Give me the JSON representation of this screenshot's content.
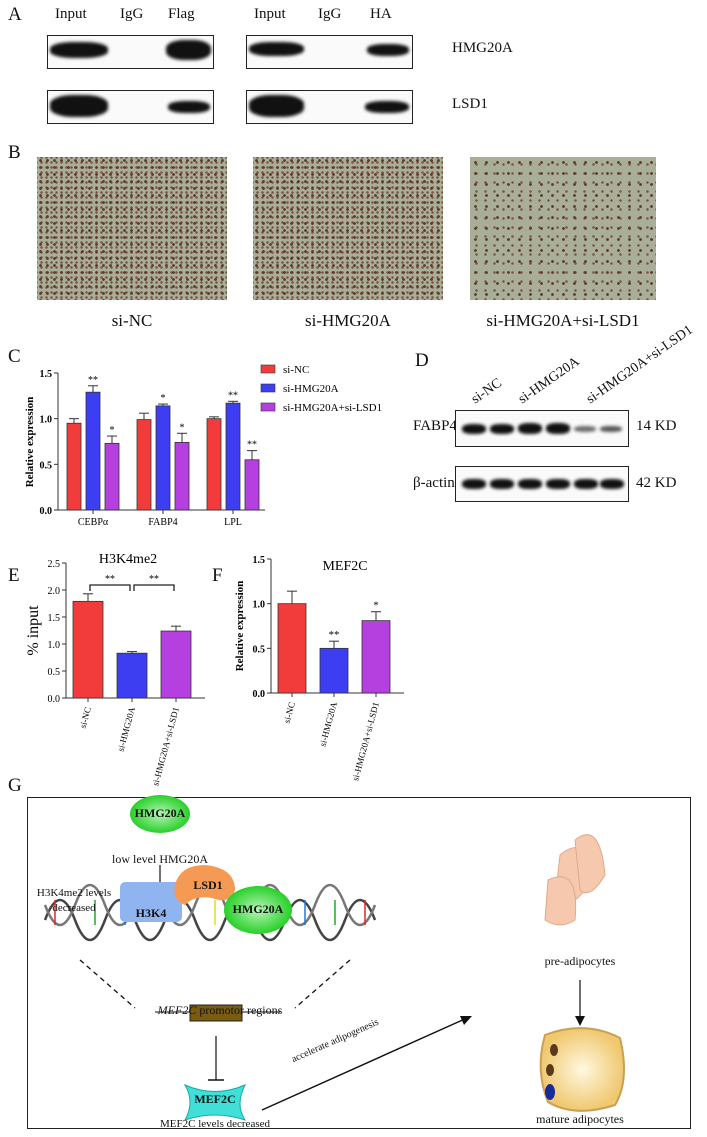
{
  "panel_labels": [
    "A",
    "B",
    "C",
    "D",
    "E",
    "F",
    "G"
  ],
  "A": {
    "lanes_left": [
      "Input",
      "IgG",
      "Flag"
    ],
    "lanes_right": [
      "Input",
      "IgG",
      "HA"
    ],
    "rows": [
      "HMG20A",
      "LSD1"
    ]
  },
  "B": {
    "captions": [
      "si-NC",
      "si-HMG20A",
      "si-HMG20A+si-LSD1"
    ]
  },
  "colors": {
    "si-NC": "#f23c3c",
    "si-HMG20A": "#3d3df2",
    "si-HMG20A+si-LSD1": "#b63fe0"
  },
  "chart_data": [
    {
      "panel": "C",
      "type": "bar",
      "ylabel": "Relative expression",
      "ylim": [
        0,
        1.5
      ],
      "yticks": [
        "0.0",
        "0.5",
        "1.0",
        "1.5"
      ],
      "categories": [
        "CEBPα",
        "FABP4",
        "LPL"
      ],
      "legend": "right",
      "series": [
        {
          "name": "si-NC",
          "values": [
            0.95,
            0.99,
            1.0
          ],
          "errors": [
            0.05,
            0.07,
            0.02
          ],
          "sig": [
            "",
            "",
            ""
          ]
        },
        {
          "name": "si-HMG20A",
          "values": [
            1.29,
            1.14,
            1.17
          ],
          "errors": [
            0.07,
            0.02,
            0.02
          ],
          "sig": [
            "**",
            "*",
            "**"
          ]
        },
        {
          "name": "si-HMG20A+si-LSD1",
          "values": [
            0.73,
            0.74,
            0.55
          ],
          "errors": [
            0.08,
            0.1,
            0.1
          ],
          "sig": [
            "*",
            "*",
            "**"
          ]
        }
      ]
    },
    {
      "panel": "E",
      "type": "bar",
      "title": "H3K4me2",
      "ylabel": "% input",
      "ylim": [
        0,
        2.5
      ],
      "yticks": [
        "0.0",
        "0.5",
        "1.0",
        "1.5",
        "2.0",
        "2.5"
      ],
      "categories": [
        "si-NC",
        "si-HMG20A",
        "si-HMG20A+si-LSD1"
      ],
      "values": [
        1.79,
        0.83,
        1.24
      ],
      "errors": [
        0.14,
        0.03,
        0.09
      ],
      "brackets": [
        {
          "from": 0,
          "to": 1,
          "label": "**"
        },
        {
          "from": 1,
          "to": 2,
          "label": "**"
        }
      ]
    },
    {
      "panel": "F",
      "type": "bar",
      "title": "MEF2C",
      "ylabel": "Relative expression",
      "ylim": [
        0,
        1.5
      ],
      "yticks": [
        "0.0",
        "0.5",
        "1.0",
        "1.5"
      ],
      "categories": [
        "si-NC",
        "si-HMG20A",
        "si-HMG20A+si-LSD1"
      ],
      "values": [
        1.0,
        0.5,
        0.81
      ],
      "errors": [
        0.14,
        0.08,
        0.1
      ],
      "sig": [
        "",
        "**",
        "*"
      ]
    }
  ],
  "D": {
    "lanes": [
      "si-NC",
      "si-HMG20A",
      "si-HMG20A+si-LSD1"
    ],
    "rows": [
      {
        "name": "FABP4",
        "size": "14 KD"
      },
      {
        "name": "β-actin",
        "size": "42 KD"
      }
    ]
  },
  "G": {
    "hmg_top": "HMG20A",
    "low_level": "low level HMG20A",
    "h3k4me2_text": "H3K4me2 levels decreased",
    "h3k4": "H3K4",
    "lsd1": "LSD1",
    "hmg_dna": "HMG20A",
    "promoter_gene": "MEF2C",
    "promoter_rest": " promotor regions",
    "mef2c": "MEF2C",
    "mef2c_text": "MEF2C levels decreased",
    "accelerate": "accelerate adipogenesis",
    "pre": "pre-adipocytes",
    "mature": "mature adipocytes"
  }
}
